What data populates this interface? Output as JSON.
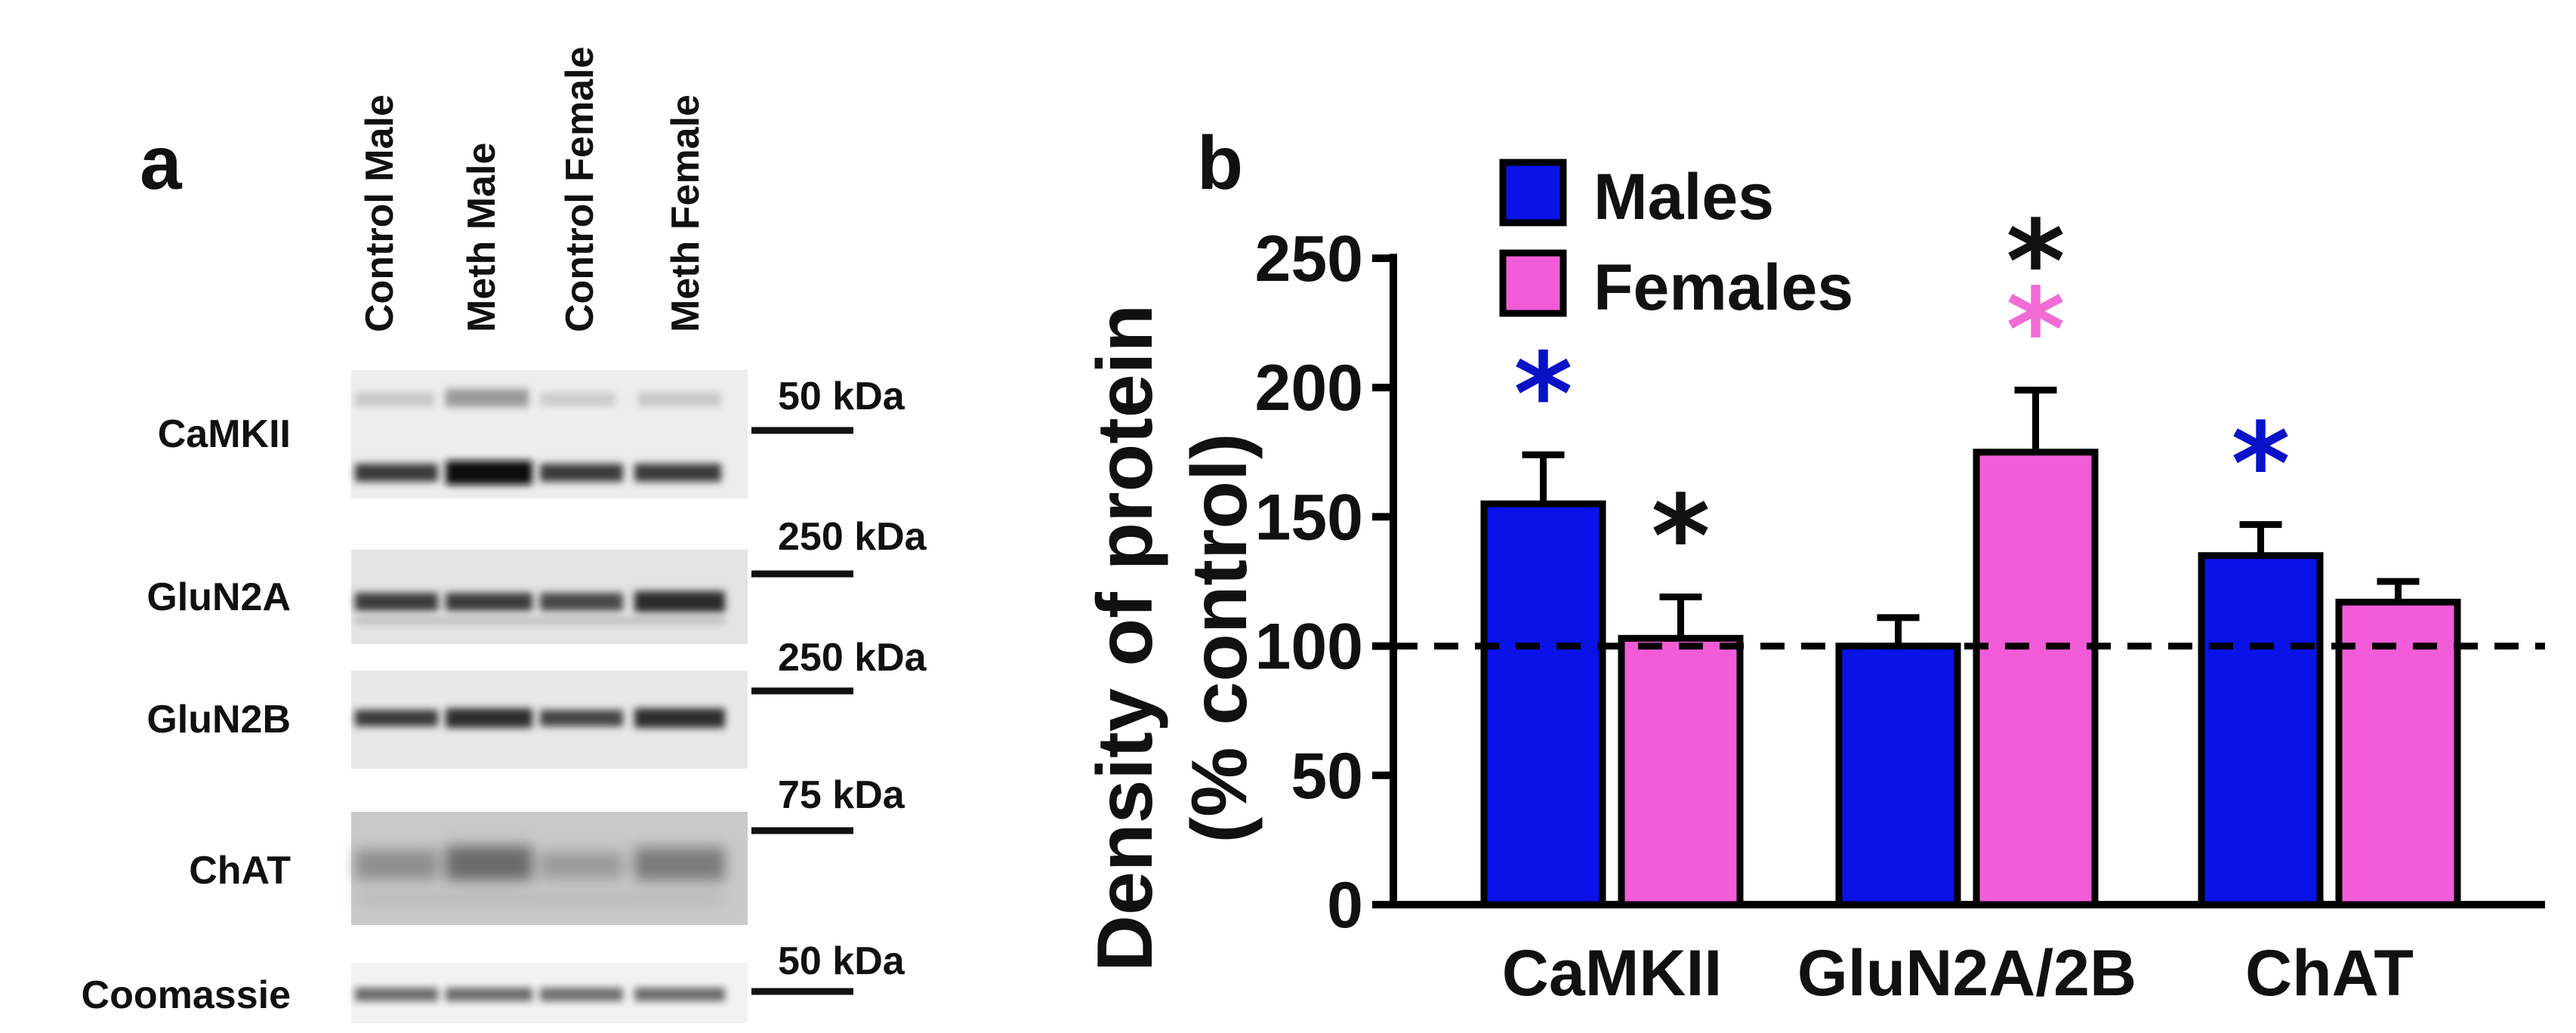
{
  "panel_a": {
    "label": "a",
    "lane_labels": [
      "Control Male",
      "Meth Male",
      "Control Female",
      "Meth Female"
    ],
    "blots": [
      {
        "protein": "CaMKII",
        "marker": "50 kDa"
      },
      {
        "protein": "GluN2A",
        "marker": "250 kDa"
      },
      {
        "protein": "GluN2B",
        "marker": "250 kDa"
      },
      {
        "protein": "ChAT",
        "marker": "75 kDa"
      },
      {
        "protein": "Coomassie",
        "marker": "50 kDa"
      }
    ]
  },
  "chart_data": {
    "panel_label": "b",
    "type": "bar",
    "ylabel": "Density of protein",
    "ylabel2": "(% control)",
    "ylim": [
      0,
      250
    ],
    "yticks": [
      0,
      50,
      100,
      150,
      200,
      250
    ],
    "categories": [
      "CaMKII",
      "GluN2A/2B",
      "ChAT"
    ],
    "series": [
      {
        "name": "Males",
        "color": "#0a12e8",
        "values": [
          155,
          100,
          135
        ],
        "errors": [
          19,
          11,
          12
        ],
        "significance": [
          "*",
          "",
          "*"
        ],
        "sig_color": "#0a12c8"
      },
      {
        "name": "Females",
        "color": "#f25cd8",
        "values": [
          103,
          175,
          117
        ],
        "errors": [
          16,
          24,
          8
        ],
        "significance": [
          "*",
          "*",
          ""
        ],
        "sig_color": "#111111"
      }
    ],
    "extra_significance": {
      "category": "GluN2A/2B",
      "series": "Females",
      "symbol": "*",
      "color": "#f06cd4"
    },
    "reference_line": 100
  }
}
